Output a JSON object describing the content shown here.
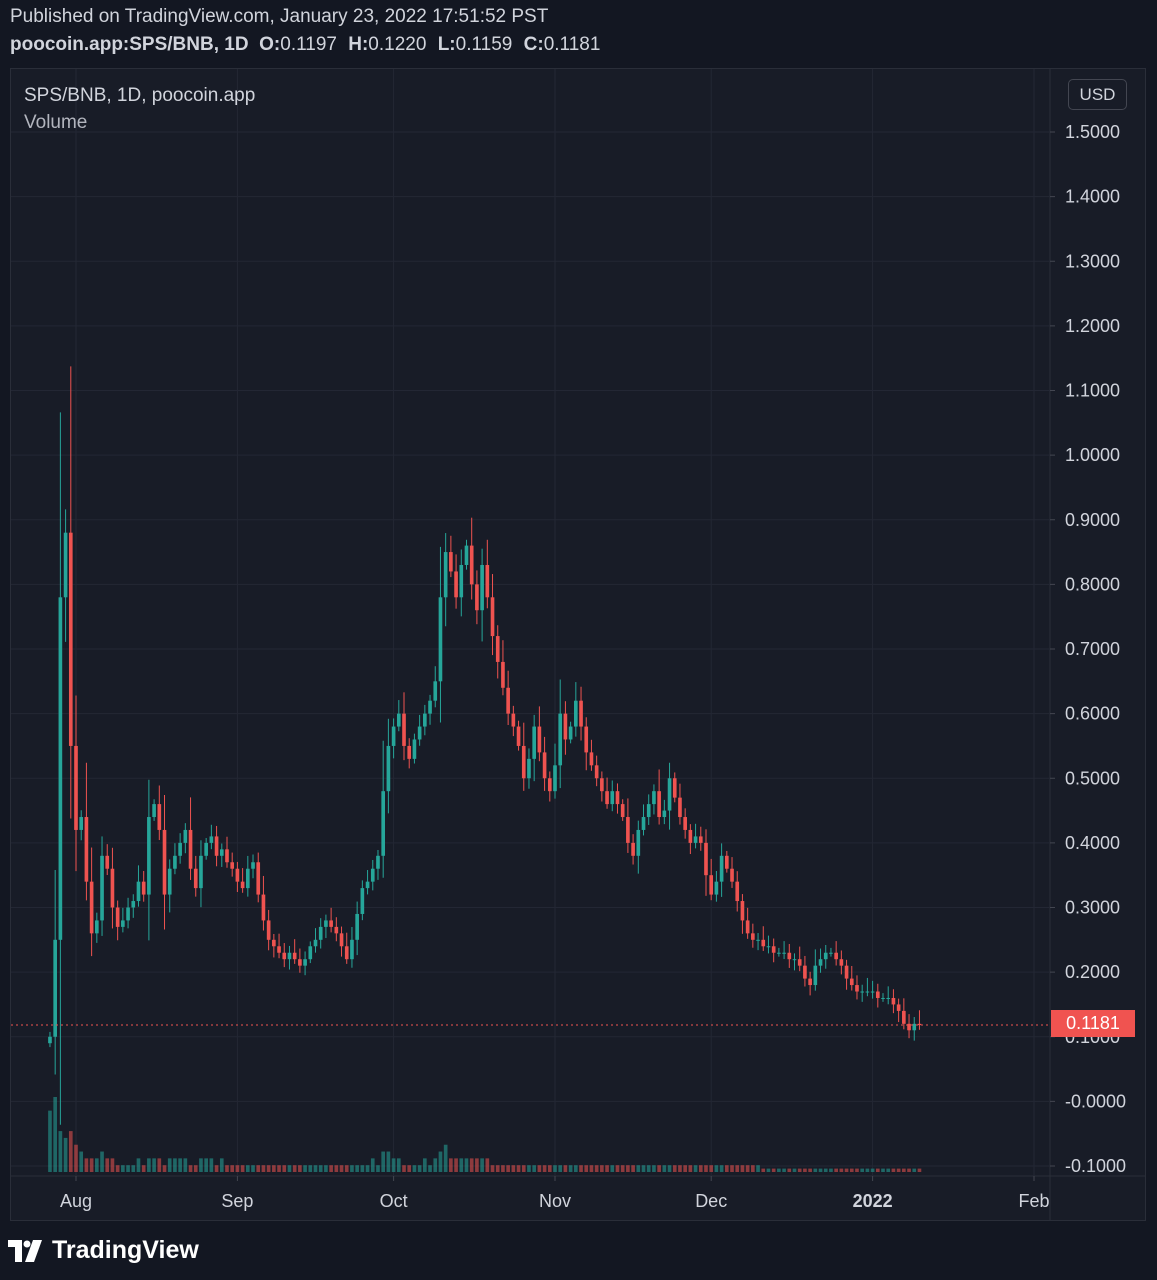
{
  "header": {
    "published": "Published on TradingView.com, January 23, 2022 17:51:52 PST",
    "symbol": "poocoin.app:SPS/BNB, 1D",
    "open_label": "O:",
    "open_value": "0.1197",
    "high_label": "H:",
    "high_value": "0.1220",
    "low_label": "L:",
    "low_value": "0.1159",
    "close_label": "C:",
    "close_value": "0.1181"
  },
  "legend": {
    "title": "SPS/BNB, 1D, poocoin.app",
    "volume_label": "Volume"
  },
  "toolbar": {
    "currency_label": "USD"
  },
  "last_price_label": "0.1181",
  "footer": {
    "brand": "TradingView"
  },
  "colors": {
    "up": "#26a69a",
    "down": "#ef5350",
    "background": "#181c27",
    "grid": "#232734",
    "text": "#d1d4dc"
  },
  "chart_data": {
    "type": "candlestick",
    "symbol": "SPS/BNB",
    "interval": "1D",
    "source": "poocoin.app",
    "y_ticks": [
      "1.5000",
      "1.4000",
      "1.3000",
      "1.2000",
      "1.1000",
      "1.0000",
      "0.9000",
      "0.8000",
      "0.7000",
      "0.6000",
      "0.5000",
      "0.4000",
      "0.3000",
      "0.2000",
      "0.1000",
      "-0.0000",
      "-0.1000"
    ],
    "y_tick_values": [
      1.5,
      1.4,
      1.3,
      1.2,
      1.1,
      1.0,
      0.9,
      0.8,
      0.7,
      0.6,
      0.5,
      0.4,
      0.3,
      0.2,
      0.1,
      0.0,
      -0.1
    ],
    "ylim": [
      -0.1,
      1.5
    ],
    "x_ticks": [
      {
        "label": "Aug",
        "date": "2021-08-01",
        "bold": false
      },
      {
        "label": "Sep",
        "date": "2021-09-01",
        "bold": false
      },
      {
        "label": "Oct",
        "date": "2021-10-01",
        "bold": false
      },
      {
        "label": "Nov",
        "date": "2021-11-01",
        "bold": false
      },
      {
        "label": "Dec",
        "date": "2021-12-01",
        "bold": false
      },
      {
        "label": "2022",
        "date": "2022-01-01",
        "bold": true
      },
      {
        "label": "Feb",
        "date": "2022-02-01",
        "bold": false
      }
    ],
    "first_date": "2021-07-27",
    "last_price": 0.1181,
    "closes": [
      0.1,
      0.25,
      0.78,
      0.88,
      0.55,
      0.42,
      0.44,
      0.34,
      0.26,
      0.28,
      0.38,
      0.36,
      0.3,
      0.27,
      0.28,
      0.3,
      0.31,
      0.34,
      0.32,
      0.44,
      0.46,
      0.42,
      0.32,
      0.36,
      0.38,
      0.4,
      0.42,
      0.36,
      0.33,
      0.38,
      0.4,
      0.41,
      0.38,
      0.39,
      0.37,
      0.36,
      0.34,
      0.33,
      0.36,
      0.37,
      0.32,
      0.28,
      0.25,
      0.24,
      0.23,
      0.22,
      0.23,
      0.22,
      0.21,
      0.22,
      0.24,
      0.25,
      0.27,
      0.28,
      0.27,
      0.26,
      0.24,
      0.22,
      0.25,
      0.29,
      0.33,
      0.34,
      0.36,
      0.38,
      0.48,
      0.55,
      0.58,
      0.6,
      0.55,
      0.53,
      0.56,
      0.58,
      0.6,
      0.62,
      0.65,
      0.78,
      0.85,
      0.82,
      0.78,
      0.83,
      0.86,
      0.8,
      0.76,
      0.83,
      0.78,
      0.72,
      0.68,
      0.64,
      0.6,
      0.58,
      0.55,
      0.5,
      0.53,
      0.58,
      0.54,
      0.5,
      0.48,
      0.52,
      0.6,
      0.56,
      0.58,
      0.62,
      0.58,
      0.54,
      0.52,
      0.5,
      0.48,
      0.46,
      0.48,
      0.46,
      0.44,
      0.4,
      0.38,
      0.42,
      0.44,
      0.46,
      0.48,
      0.44,
      0.45,
      0.5,
      0.47,
      0.44,
      0.42,
      0.4,
      0.41,
      0.4,
      0.35,
      0.32,
      0.34,
      0.38,
      0.36,
      0.34,
      0.31,
      0.28,
      0.26,
      0.25,
      0.25,
      0.24,
      0.24,
      0.23,
      0.23,
      0.23,
      0.22,
      0.22,
      0.21,
      0.19,
      0.18,
      0.21,
      0.22,
      0.23,
      0.23,
      0.22,
      0.21,
      0.19,
      0.18,
      0.17,
      0.17,
      0.17,
      0.17,
      0.16,
      0.16,
      0.16,
      0.15,
      0.14,
      0.12,
      0.11,
      0.12,
      0.118
    ],
    "volume_ylim": [
      0,
      0.11
    ],
    "volumes": [
      0.09,
      0.11,
      0.06,
      0.05,
      0.06,
      0.04,
      0.03,
      0.02,
      0.02,
      0.02,
      0.03,
      0.02,
      0.02,
      0.01,
      0.01,
      0.01,
      0.01,
      0.02,
      0.01,
      0.02,
      0.02,
      0.02,
      0.01,
      0.02,
      0.02,
      0.02,
      0.02,
      0.01,
      0.01,
      0.02,
      0.02,
      0.02,
      0.01,
      0.02,
      0.01,
      0.01,
      0.01,
      0.01,
      0.01,
      0.01,
      0.01,
      0.01,
      0.01,
      0.01,
      0.01,
      0.01,
      0.01,
      0.01,
      0.01,
      0.01,
      0.01,
      0.01,
      0.01,
      0.01,
      0.01,
      0.01,
      0.01,
      0.01,
      0.01,
      0.01,
      0.01,
      0.01,
      0.02,
      0.01,
      0.03,
      0.03,
      0.02,
      0.02,
      0.01,
      0.01,
      0.01,
      0.01,
      0.02,
      0.01,
      0.02,
      0.03,
      0.04,
      0.02,
      0.02,
      0.02,
      0.02,
      0.02,
      0.02,
      0.02,
      0.02,
      0.01,
      0.01,
      0.01,
      0.01,
      0.01,
      0.01,
      0.01,
      0.01,
      0.01,
      0.01,
      0.01,
      0.01,
      0.01,
      0.01,
      0.01,
      0.01,
      0.01,
      0.01,
      0.01,
      0.01,
      0.01,
      0.01,
      0.01,
      0.01,
      0.01,
      0.01,
      0.01,
      0.01,
      0.01,
      0.01,
      0.01,
      0.01,
      0.01,
      0.01,
      0.01,
      0.01,
      0.01,
      0.01,
      0.01,
      0.01,
      0.01,
      0.01,
      0.01,
      0.01,
      0.01,
      0.01,
      0.01,
      0.01,
      0.01,
      0.01,
      0.01,
      0.01,
      0.005,
      0.005,
      0.005,
      0.005,
      0.005,
      0.005,
      0.005,
      0.005,
      0.005,
      0.005,
      0.005,
      0.005,
      0.005,
      0.005,
      0.005,
      0.005,
      0.005,
      0.005,
      0.005,
      0.005,
      0.005,
      0.005,
      0.005,
      0.005,
      0.005,
      0.005,
      0.005,
      0.005,
      0.005,
      0.005,
      0.005,
      0.005,
      0.005
    ]
  }
}
